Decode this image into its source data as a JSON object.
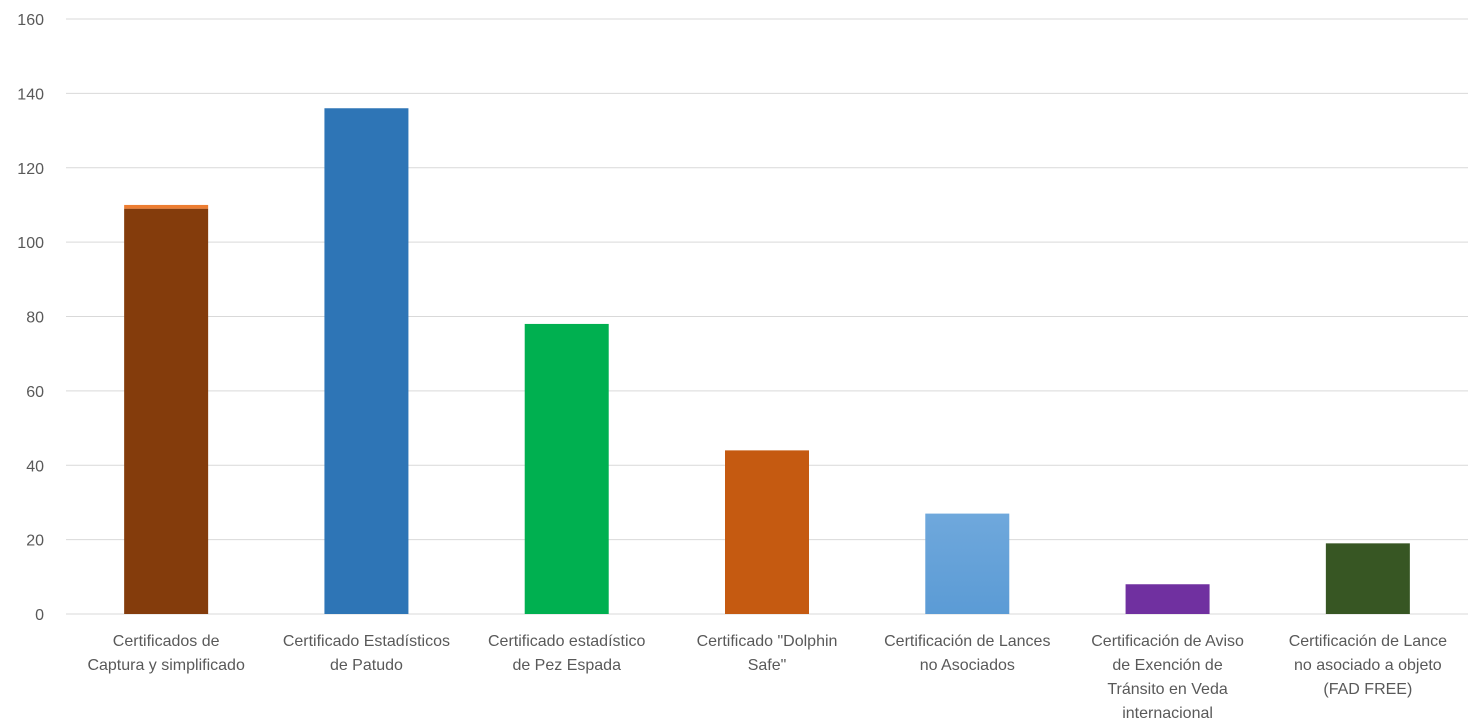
{
  "chart_data": {
    "type": "bar",
    "title": "",
    "xlabel": "",
    "ylabel": "",
    "ylim": [
      0,
      160
    ],
    "yticks": [
      0,
      20,
      40,
      60,
      80,
      100,
      120,
      140,
      160
    ],
    "grid": true,
    "legend": "none",
    "categories": [
      [
        "Certificados de",
        "Captura y simplificado"
      ],
      [
        "Certificado Estadísticos",
        "de Patudo"
      ],
      [
        "Certificado estadístico",
        "de Pez Espada"
      ],
      [
        "Certificado \"Dolphin",
        "Safe\""
      ],
      [
        "Certificación de Lances",
        "no Asociados"
      ],
      [
        "Certificación de Aviso",
        "de Exención de",
        "Tránsito en Veda",
        "internacional"
      ],
      [
        "Certificación de Lance",
        "no asociado a objeto",
        "(FAD FREE)"
      ]
    ],
    "bars": [
      {
        "segments": [
          {
            "value": 109,
            "color": "#843C0C"
          },
          {
            "value": 1,
            "color": "#ED7D31"
          }
        ]
      },
      {
        "segments": [
          {
            "value": 136,
            "color": "#2E75B6"
          }
        ]
      },
      {
        "segments": [
          {
            "value": 78,
            "color": "#00B050"
          }
        ]
      },
      {
        "segments": [
          {
            "value": 44,
            "color": "#C55A11"
          }
        ]
      },
      {
        "segments": [
          {
            "value": 27,
            "color": "#5B9BD5",
            "gradient_to": "#6FA8DC"
          }
        ]
      },
      {
        "segments": [
          {
            "value": 8,
            "color": "#7030A0"
          }
        ]
      },
      {
        "segments": [
          {
            "value": 19,
            "color": "#375623"
          }
        ]
      }
    ],
    "colors": {
      "gridline": "#D9D9D9",
      "axis_text": "#595959"
    }
  }
}
